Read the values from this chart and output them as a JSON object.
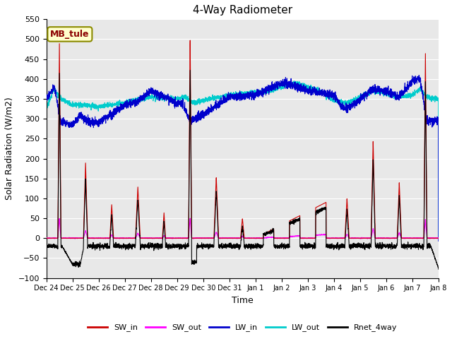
{
  "title": "4-Way Radiometer",
  "xlabel": "Time",
  "ylabel": "Solar Radiation (W/m2)",
  "ylim": [
    -100,
    550
  ],
  "annotation_text": "MB_tule",
  "annotation_box_color": "#ffffcc",
  "annotation_border_color": "#8B8B00",
  "annotation_text_color": "#8B0000",
  "bg_color": "#e8e8e8",
  "colors": {
    "SW_in": "#cc0000",
    "SW_out": "#ff00ff",
    "LW_in": "#0000cc",
    "LW_out": "#00cccc",
    "Rnet_4way": "#000000"
  },
  "x_tick_labels": [
    "Dec 24",
    "Dec 25",
    "Dec 26",
    "Dec 27",
    "Dec 28",
    "Dec 29",
    "Dec 30",
    "Dec 31",
    "Jan 1",
    "Jan 2",
    "Jan 3",
    "Jan 4",
    "Jan 5",
    "Jan 6",
    "Jan 7",
    "Jan 8"
  ],
  "n_points": 3600
}
